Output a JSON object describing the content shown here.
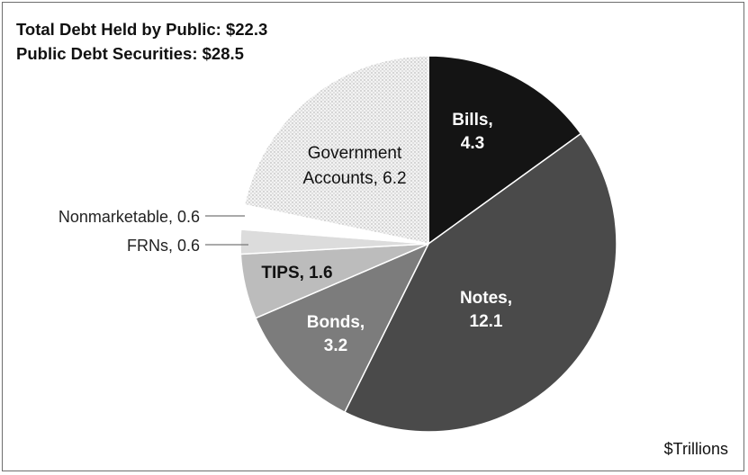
{
  "chart_data": {
    "type": "pie",
    "annotations": [
      "Total Debt Held by Public: $22.3",
      "Public Debt Securities: $28.5"
    ],
    "units": "$Trillions",
    "slices": [
      {
        "id": "bills",
        "label": "Bills,",
        "value_text": "4.3",
        "value": 4.3,
        "color": "#141414",
        "text_color": "light",
        "bold": true
      },
      {
        "id": "notes",
        "label": "Notes,",
        "value_text": "12.1",
        "value": 12.1,
        "color": "#4a4a4a",
        "text_color": "light",
        "bold": true
      },
      {
        "id": "bonds",
        "label": "Bonds,",
        "value_text": "3.2",
        "value": 3.2,
        "color": "#7c7c7c",
        "text_color": "light",
        "bold": true
      },
      {
        "id": "tips",
        "label": "TIPS, 1.6",
        "value_text": "",
        "value": 1.6,
        "color": "#bcbcbc",
        "text_color": "dark",
        "bold": true
      },
      {
        "id": "frns",
        "label": "FRNs, 0.6",
        "value_text": "",
        "value": 0.6,
        "color": "#dcdcdc",
        "text_color": "dark",
        "bold": false,
        "leader": true
      },
      {
        "id": "nonmarketable",
        "label": "Nonmarketable, 0.6",
        "value_text": "",
        "value": 0.6,
        "color": "#ffffff",
        "text_color": "dark",
        "bold": false,
        "leader": true
      },
      {
        "id": "government-accounts",
        "label": "Government",
        "value_text": "Accounts, 6.2",
        "value": 6.2,
        "color": "#f0f0f0",
        "pattern": "dotted",
        "text_color": "dark",
        "bold": false
      }
    ]
  }
}
